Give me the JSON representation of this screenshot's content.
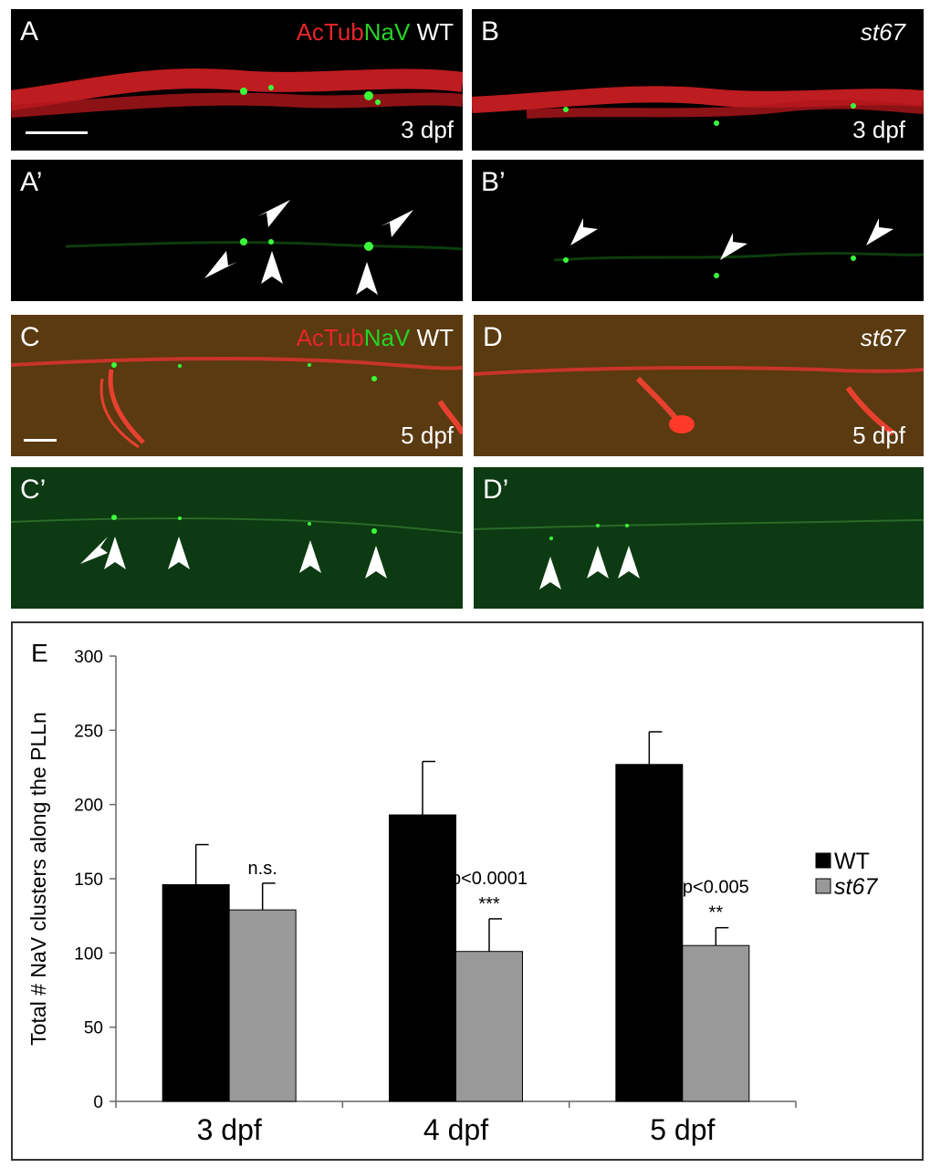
{
  "panels": {
    "A": {
      "label": "A",
      "stain_red": "AcTub",
      "stain_green": "NaV",
      "genotype": "WT",
      "age": "3 dpf"
    },
    "A_prime": {
      "label": "A’"
    },
    "B": {
      "label": "B",
      "genotype": "st67",
      "age": "3 dpf"
    },
    "B_prime": {
      "label": "B’"
    },
    "C": {
      "label": "C",
      "stain_red": "AcTub",
      "stain_green": "NaV",
      "genotype": "WT",
      "age": "5 dpf"
    },
    "C_prime": {
      "label": "C’"
    },
    "D": {
      "label": "D",
      "genotype": "st67",
      "age": "5 dpf"
    },
    "D_prime": {
      "label": "D’"
    }
  },
  "colors": {
    "actub": "#e8252b",
    "nav": "#25d425",
    "wt_bar": "#000000",
    "st67_bar": "#999999"
  },
  "chart_data": {
    "type": "bar",
    "panel_label": "E",
    "categories": [
      "3 dpf",
      "4 dpf",
      "5 dpf"
    ],
    "series": [
      {
        "name": "WT",
        "values": [
          146,
          193,
          227
        ],
        "errors": [
          27,
          36,
          22
        ],
        "color": "#000000"
      },
      {
        "name": "st67",
        "values": [
          129,
          101,
          105
        ],
        "errors": [
          18,
          22,
          12
        ],
        "color": "#999999"
      }
    ],
    "ylabel": "Total # NaV clusters along the PLLn",
    "ylim": [
      0,
      300
    ],
    "yticks": [
      0,
      50,
      100,
      150,
      200,
      250,
      300
    ],
    "annotations": [
      {
        "category": "3 dpf",
        "text": [
          "n.s."
        ]
      },
      {
        "category": "4 dpf",
        "text": [
          "p<0.0001",
          "***"
        ]
      },
      {
        "category": "5 dpf",
        "text": [
          "p<0.005",
          "**"
        ]
      }
    ],
    "legend_position": "right",
    "grid": false
  }
}
